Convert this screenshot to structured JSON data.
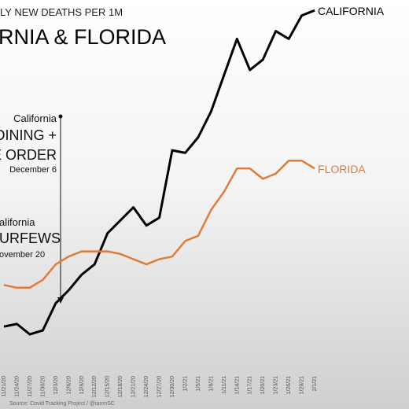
{
  "chart_data": {
    "type": "line",
    "title": "LY NEW DEATHS PER 1M",
    "subtitle": "RNIA & FLORIDA",
    "source": "Source: Covid Tracking Project / @ianmSC",
    "categories": [
      "11/21/20",
      "11/24/20",
      "11/27/20",
      "11/30/20",
      "12/3/20",
      "12/6/20",
      "12/9/20",
      "12/12/20",
      "12/15/20",
      "12/18/20",
      "12/21/20",
      "12/24/20",
      "12/27/20",
      "12/30/20",
      "1/2/21",
      "1/5/21",
      "1/8/21",
      "1/11/21",
      "1/14/21",
      "1/17/21",
      "1/20/21",
      "1/23/21",
      "1/26/21",
      "1/29/21",
      "2/1/21"
    ],
    "series": [
      {
        "name": "CALIFORNIA",
        "color": "#000000",
        "values": [
          1.3,
          1.4,
          1.0,
          1.15,
          2.2,
          2.7,
          3.3,
          3.7,
          4.9,
          5.4,
          5.9,
          5.2,
          5.5,
          8.1,
          8.0,
          8.6,
          9.6,
          11.0,
          12.4,
          11.2,
          11.6,
          12.7,
          12.4,
          13.3,
          13.5
        ]
      },
      {
        "name": "FLORIDA",
        "color": "#e07b39",
        "values": [
          2.9,
          2.8,
          2.8,
          3.1,
          3.7,
          4.0,
          4.2,
          4.2,
          4.2,
          4.1,
          3.9,
          3.7,
          3.9,
          4.0,
          4.6,
          4.8,
          5.8,
          6.5,
          7.4,
          7.4,
          7.0,
          7.2,
          7.7,
          7.7,
          7.4
        ]
      }
    ],
    "ylim": [
      0,
      13.9
    ],
    "annotations": [
      {
        "lines": [
          "California",
          "DINING +",
          "E ORDER",
          "December 6"
        ]
      },
      {
        "lines": [
          "alifornia",
          "URFEWS",
          "ovember 20"
        ]
      }
    ]
  }
}
